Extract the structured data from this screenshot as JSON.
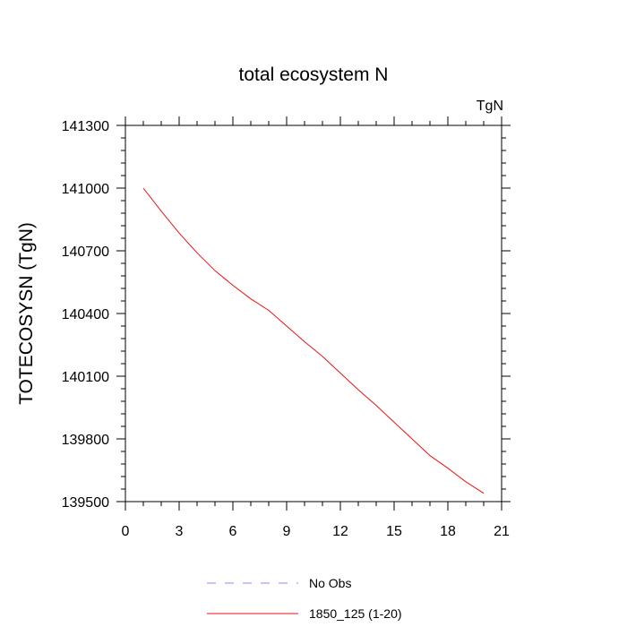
{
  "chart_data": {
    "type": "line",
    "title": "total ecosystem N",
    "units_label": "TgN",
    "xlabel": "",
    "ylabel": "TOTECOSYSN  (TgN)",
    "xlim": [
      0,
      21
    ],
    "ylim": [
      139500,
      141300
    ],
    "x_ticks": [
      0,
      3,
      6,
      9,
      12,
      15,
      18,
      21
    ],
    "y_ticks": [
      139500,
      139800,
      140100,
      140400,
      140700,
      141000,
      141300
    ],
    "x_minor_step": 1,
    "y_minor_step": 60,
    "grid": false,
    "legend_position": "bottom",
    "series": [
      {
        "name": "No Obs",
        "style": "dashed",
        "color": "#8888ee",
        "x": [],
        "values": []
      },
      {
        "name": "1850_125 (1-20)",
        "style": "solid",
        "color": "#ee1111",
        "x": [
          1,
          2,
          3,
          4,
          5,
          6,
          7,
          8,
          9,
          10,
          11,
          12,
          13,
          14,
          15,
          16,
          17,
          18,
          19,
          20
        ],
        "values": [
          141000,
          140890,
          140785,
          140690,
          140605,
          140535,
          140470,
          140415,
          140340,
          140265,
          140195,
          140115,
          140035,
          139960,
          139880,
          139800,
          139720,
          139660,
          139595,
          139540
        ]
      }
    ]
  }
}
